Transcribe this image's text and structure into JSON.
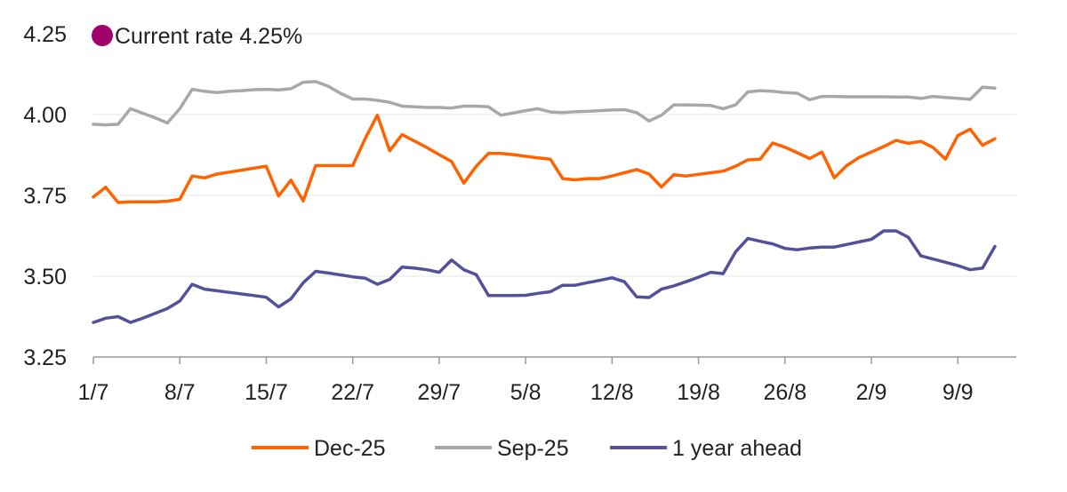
{
  "chart_data": {
    "type": "line",
    "title": "",
    "xlabel": "",
    "ylabel": "",
    "ylim": [
      3.25,
      4.25
    ],
    "yticks": [
      "3.25",
      "3.50",
      "3.75",
      "4.00",
      "4.25"
    ],
    "x_tick_labels": [
      "1/7",
      "8/7",
      "15/7",
      "22/7",
      "29/7",
      "5/8",
      "12/8",
      "19/8",
      "26/8",
      "2/9",
      "9/9"
    ],
    "x_range_days": [
      0,
      72
    ],
    "grid": true,
    "legend_position": "bottom",
    "annotation": {
      "text": "Current rate 4.25%",
      "value": 4.25,
      "color": "#A0006A"
    },
    "series": [
      {
        "name": "Dec-25",
        "color": "#FF6200",
        "points": [
          [
            0,
            3.745
          ],
          [
            1,
            3.775
          ],
          [
            2,
            3.728
          ],
          [
            3,
            3.73
          ],
          [
            4,
            3.73
          ],
          [
            5,
            3.73
          ],
          [
            6,
            3.732
          ],
          [
            7,
            3.738
          ],
          [
            8,
            3.81
          ],
          [
            9,
            3.804
          ],
          [
            10,
            3.816
          ],
          [
            11,
            3.822
          ],
          [
            12,
            3.828
          ],
          [
            13,
            3.834
          ],
          [
            14,
            3.84
          ],
          [
            15,
            3.748
          ],
          [
            16,
            3.797
          ],
          [
            17,
            3.733
          ],
          [
            18,
            3.842
          ],
          [
            19,
            3.842
          ],
          [
            20,
            3.842
          ],
          [
            21,
            3.842
          ],
          [
            22,
            3.925
          ],
          [
            23,
            3.998
          ],
          [
            24,
            3.888
          ],
          [
            25,
            3.938
          ],
          [
            26,
            3.918
          ],
          [
            27,
            3.898
          ],
          [
            28,
            3.876
          ],
          [
            29,
            3.855
          ],
          [
            30,
            3.788
          ],
          [
            31,
            3.84
          ],
          [
            32,
            3.88
          ],
          [
            33,
            3.88
          ],
          [
            34,
            3.876
          ],
          [
            35,
            3.871
          ],
          [
            36,
            3.866
          ],
          [
            37,
            3.862
          ],
          [
            38,
            3.802
          ],
          [
            39,
            3.798
          ],
          [
            40,
            3.802
          ],
          [
            41,
            3.802
          ],
          [
            42,
            3.81
          ],
          [
            43,
            3.82
          ],
          [
            44,
            3.83
          ],
          [
            45,
            3.816
          ],
          [
            46,
            3.776
          ],
          [
            47,
            3.814
          ],
          [
            48,
            3.81
          ],
          [
            49,
            3.815
          ],
          [
            50,
            3.82
          ],
          [
            51,
            3.825
          ],
          [
            52,
            3.84
          ],
          [
            53,
            3.86
          ],
          [
            54,
            3.862
          ],
          [
            55,
            3.912
          ],
          [
            56,
            3.899
          ],
          [
            57,
            3.882
          ],
          [
            58,
            3.864
          ],
          [
            59,
            3.884
          ],
          [
            60,
            3.804
          ],
          [
            61,
            3.842
          ],
          [
            62,
            3.867
          ],
          [
            63,
            3.884
          ],
          [
            64,
            3.901
          ],
          [
            65,
            3.92
          ],
          [
            66,
            3.911
          ],
          [
            67,
            3.917
          ],
          [
            68,
            3.898
          ],
          [
            69,
            3.862
          ],
          [
            70,
            3.935
          ],
          [
            71,
            3.955
          ],
          [
            72,
            3.905
          ],
          [
            73,
            3.925
          ]
        ]
      },
      {
        "name": "Sep-25",
        "color": "#A8A8A8",
        "points": [
          [
            0,
            3.97
          ],
          [
            1,
            3.968
          ],
          [
            2,
            3.97
          ],
          [
            3,
            4.018
          ],
          [
            4,
            4.004
          ],
          [
            5,
            3.99
          ],
          [
            6,
            3.974
          ],
          [
            7,
            4.018
          ],
          [
            8,
            4.078
          ],
          [
            9,
            4.072
          ],
          [
            10,
            4.068
          ],
          [
            11,
            4.072
          ],
          [
            12,
            4.074
          ],
          [
            13,
            4.077
          ],
          [
            14,
            4.078
          ],
          [
            15,
            4.076
          ],
          [
            16,
            4.08
          ],
          [
            17,
            4.1
          ],
          [
            18,
            4.102
          ],
          [
            19,
            4.088
          ],
          [
            20,
            4.066
          ],
          [
            21,
            4.048
          ],
          [
            22,
            4.048
          ],
          [
            23,
            4.044
          ],
          [
            24,
            4.038
          ],
          [
            25,
            4.026
          ],
          [
            26,
            4.024
          ],
          [
            27,
            4.022
          ],
          [
            28,
            4.022
          ],
          [
            29,
            4.02
          ],
          [
            30,
            4.026
          ],
          [
            31,
            4.026
          ],
          [
            32,
            4.024
          ],
          [
            33,
            3.998
          ],
          [
            34,
            4.005
          ],
          [
            35,
            4.012
          ],
          [
            36,
            4.018
          ],
          [
            37,
            4.008
          ],
          [
            38,
            4.006
          ],
          [
            39,
            4.009
          ],
          [
            40,
            4.01
          ],
          [
            41,
            4.012
          ],
          [
            42,
            4.014
          ],
          [
            43,
            4.015
          ],
          [
            44,
            4.006
          ],
          [
            45,
            3.98
          ],
          [
            46,
            3.998
          ],
          [
            47,
            4.03
          ],
          [
            48,
            4.03
          ],
          [
            49,
            4.029
          ],
          [
            50,
            4.028
          ],
          [
            51,
            4.018
          ],
          [
            52,
            4.03
          ],
          [
            53,
            4.07
          ],
          [
            54,
            4.074
          ],
          [
            55,
            4.072
          ],
          [
            56,
            4.068
          ],
          [
            57,
            4.066
          ],
          [
            58,
            4.046
          ],
          [
            59,
            4.056
          ],
          [
            60,
            4.056
          ],
          [
            61,
            4.055
          ],
          [
            62,
            4.055
          ],
          [
            63,
            4.055
          ],
          [
            64,
            4.055
          ],
          [
            65,
            4.054
          ],
          [
            66,
            4.054
          ],
          [
            67,
            4.05
          ],
          [
            68,
            4.056
          ],
          [
            69,
            4.053
          ],
          [
            70,
            4.05
          ],
          [
            71,
            4.047
          ],
          [
            72,
            4.085
          ],
          [
            73,
            4.082
          ]
        ]
      },
      {
        "name": "1 year ahead",
        "color": "#525199",
        "points": [
          [
            0,
            3.357
          ],
          [
            1,
            3.37
          ],
          [
            2,
            3.375
          ],
          [
            3,
            3.357
          ],
          [
            4,
            3.37
          ],
          [
            5,
            3.385
          ],
          [
            6,
            3.4
          ],
          [
            7,
            3.423
          ],
          [
            8,
            3.475
          ],
          [
            9,
            3.46
          ],
          [
            10,
            3.455
          ],
          [
            11,
            3.45
          ],
          [
            12,
            3.445
          ],
          [
            13,
            3.44
          ],
          [
            14,
            3.435
          ],
          [
            15,
            3.405
          ],
          [
            16,
            3.43
          ],
          [
            17,
            3.48
          ],
          [
            18,
            3.515
          ],
          [
            19,
            3.51
          ],
          [
            20,
            3.504
          ],
          [
            21,
            3.498
          ],
          [
            22,
            3.494
          ],
          [
            23,
            3.475
          ],
          [
            24,
            3.49
          ],
          [
            25,
            3.528
          ],
          [
            26,
            3.525
          ],
          [
            27,
            3.52
          ],
          [
            28,
            3.512
          ],
          [
            29,
            3.55
          ],
          [
            30,
            3.52
          ],
          [
            31,
            3.505
          ],
          [
            32,
            3.44
          ],
          [
            33,
            3.44
          ],
          [
            34,
            3.44
          ],
          [
            35,
            3.441
          ],
          [
            36,
            3.447
          ],
          [
            37,
            3.452
          ],
          [
            38,
            3.472
          ],
          [
            39,
            3.472
          ],
          [
            40,
            3.48
          ],
          [
            41,
            3.487
          ],
          [
            42,
            3.495
          ],
          [
            43,
            3.483
          ],
          [
            44,
            3.436
          ],
          [
            45,
            3.434
          ],
          [
            46,
            3.46
          ],
          [
            47,
            3.47
          ],
          [
            48,
            3.483
          ],
          [
            49,
            3.497
          ],
          [
            50,
            3.512
          ],
          [
            51,
            3.508
          ],
          [
            52,
            3.575
          ],
          [
            53,
            3.617
          ],
          [
            54,
            3.608
          ],
          [
            55,
            3.6
          ],
          [
            56,
            3.586
          ],
          [
            57,
            3.582
          ],
          [
            58,
            3.587
          ],
          [
            59,
            3.59
          ],
          [
            60,
            3.59
          ],
          [
            61,
            3.598
          ],
          [
            62,
            3.606
          ],
          [
            63,
            3.614
          ],
          [
            64,
            3.64
          ],
          [
            65,
            3.64
          ],
          [
            66,
            3.62
          ],
          [
            67,
            3.563
          ],
          [
            68,
            3.553
          ],
          [
            69,
            3.543
          ],
          [
            70,
            3.533
          ],
          [
            71,
            3.52
          ],
          [
            72,
            3.525
          ],
          [
            73,
            3.592
          ]
        ]
      }
    ]
  }
}
